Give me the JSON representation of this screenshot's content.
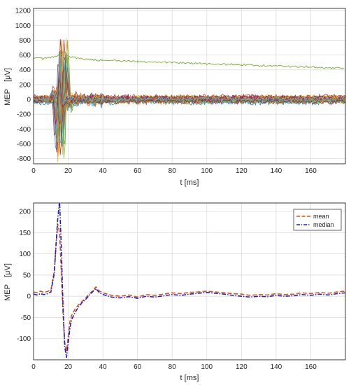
{
  "chart_data": [
    {
      "type": "line",
      "title": "",
      "xlabel": "t [ms]",
      "ylabel": "MEP",
      "ylabel_unit": "[μV]",
      "xlim": [
        0,
        180
      ],
      "ylim": [
        -870,
        1230
      ],
      "xticks": [
        0,
        20,
        40,
        60,
        80,
        100,
        120,
        140,
        160
      ],
      "yticks": [
        -800,
        -600,
        -400,
        -200,
        0,
        200,
        400,
        600,
        800,
        1000,
        1200
      ],
      "grid": true,
      "legend": "none",
      "trace_colors": [
        "#0072bd",
        "#d95319",
        "#edb120",
        "#7e2f8e",
        "#77ac30",
        "#4dbeee",
        "#a2142f"
      ],
      "offset_trace": {
        "color": "#77ac30",
        "x": [
          0,
          5,
          10,
          15,
          18,
          20,
          25,
          30,
          40,
          60,
          80,
          100,
          120,
          140,
          160,
          180
        ],
        "values": [
          560,
          550,
          570,
          600,
          640,
          580,
          560,
          540,
          530,
          510,
          500,
          480,
          470,
          450,
          440,
          420
        ]
      },
      "note": "many overlaid individual MEP sweeps, peak response ~13-20 ms"
    },
    {
      "type": "line",
      "title": "",
      "xlabel": "t [ms]",
      "ylabel": "MEP",
      "ylabel_unit": "[μV]",
      "xlim": [
        0,
        180
      ],
      "ylim": [
        -150,
        220
      ],
      "xticks": [
        0,
        20,
        40,
        60,
        80,
        100,
        120,
        140,
        160
      ],
      "yticks": [
        -100,
        -50,
        0,
        50,
        100,
        150,
        200
      ],
      "grid": true,
      "legend": "top-right",
      "x": [
        0,
        2,
        4,
        6,
        8,
        10,
        12,
        13,
        14,
        15,
        16,
        17,
        18,
        19,
        20,
        21,
        22,
        24,
        26,
        28,
        30,
        32,
        34,
        36,
        38,
        40,
        45,
        50,
        55,
        60,
        65,
        70,
        75,
        80,
        85,
        90,
        95,
        100,
        105,
        110,
        115,
        120,
        125,
        130,
        135,
        140,
        145,
        150,
        155,
        160,
        165,
        170,
        175,
        180
      ],
      "series": [
        {
          "name": "mean",
          "color": "#d95319",
          "dash": "dash",
          "values": [
            10,
            8,
            12,
            9,
            11,
            15,
            60,
            120,
            170,
            150,
            60,
            -40,
            -110,
            -130,
            -95,
            -60,
            -45,
            -30,
            -20,
            -12,
            -5,
            5,
            12,
            22,
            12,
            8,
            2,
            0,
            3,
            -2,
            4,
            2,
            5,
            8,
            6,
            9,
            10,
            12,
            10,
            8,
            6,
            5,
            2,
            4,
            3,
            6,
            4,
            5,
            8,
            6,
            9,
            7,
            10,
            12
          ]
        },
        {
          "name": "median",
          "color": "#2020c8",
          "dash": "dashdot",
          "values": [
            5,
            3,
            6,
            4,
            6,
            10,
            55,
            125,
            185,
            225,
            120,
            -20,
            -120,
            -145,
            -110,
            -75,
            -55,
            -38,
            -25,
            -15,
            -8,
            2,
            10,
            18,
            8,
            4,
            -2,
            -4,
            -1,
            -5,
            0,
            -2,
            1,
            4,
            2,
            5,
            7,
            9,
            7,
            5,
            2,
            0,
            -2,
            0,
            -1,
            2,
            0,
            1,
            4,
            2,
            5,
            3,
            6,
            8
          ]
        }
      ]
    }
  ]
}
